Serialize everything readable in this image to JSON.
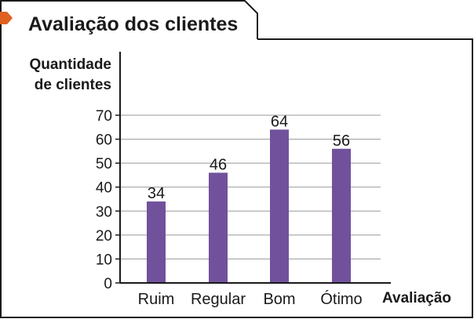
{
  "chart_data": {
    "type": "bar",
    "title": "Avaliação dos clientes",
    "ylabel_line1": "Quantidade",
    "ylabel_line2": "de clientes",
    "xlabel": "Avaliação",
    "categories": [
      "Ruim",
      "Regular",
      "Bom",
      "Ótimo"
    ],
    "values": [
      34,
      46,
      64,
      56
    ],
    "data_labels": [
      "34",
      "46",
      "64",
      "56"
    ],
    "yticks": [
      "0",
      "10",
      "20",
      "30",
      "40",
      "50",
      "60",
      "70"
    ],
    "ylim": [
      0,
      70
    ],
    "grid": true,
    "colors": {
      "bar": "#71519b",
      "accent_tab": "#e0601f",
      "grid": "#999999",
      "axis": "#1a1a1a",
      "frame": "#1a1a1a"
    }
  }
}
